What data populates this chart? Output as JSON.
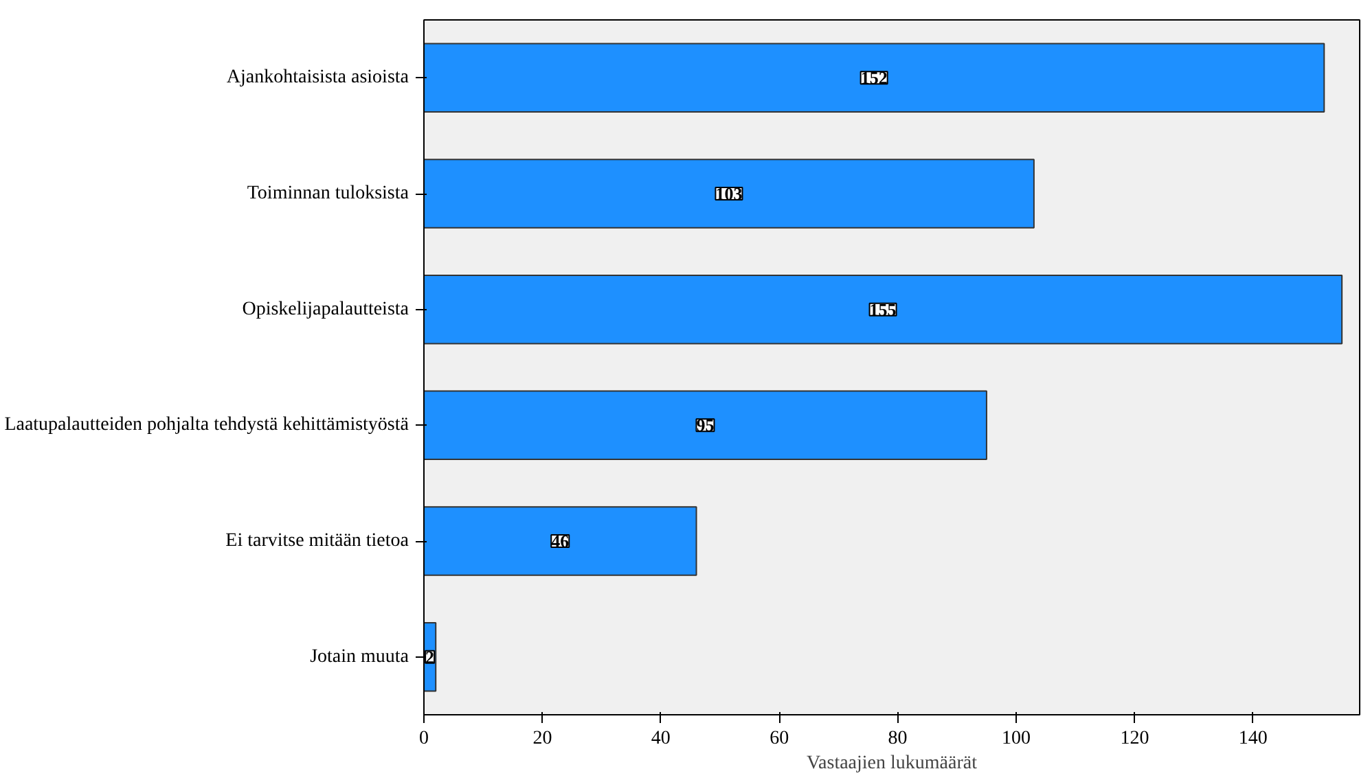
{
  "chart_data": {
    "type": "bar",
    "orientation": "horizontal",
    "xlabel": "Vastaajien lukumäärät",
    "categories": [
      "Ajankohtaisista asioista",
      "Toiminnan tuloksista",
      "Opiskelijapalautteista",
      "Laatupalautteiden pohjalta tehdystä kehittämistyöstä",
      "Ei tarvitse mitään tietoa",
      "Jotain muuta"
    ],
    "values": [
      152,
      103,
      155,
      95,
      46,
      2
    ],
    "color": "#1e90ff",
    "xlim": [
      0,
      158
    ],
    "xticks": [
      0,
      20,
      40,
      60,
      80,
      100,
      120,
      140
    ],
    "grid": false,
    "data_labels": true
  }
}
